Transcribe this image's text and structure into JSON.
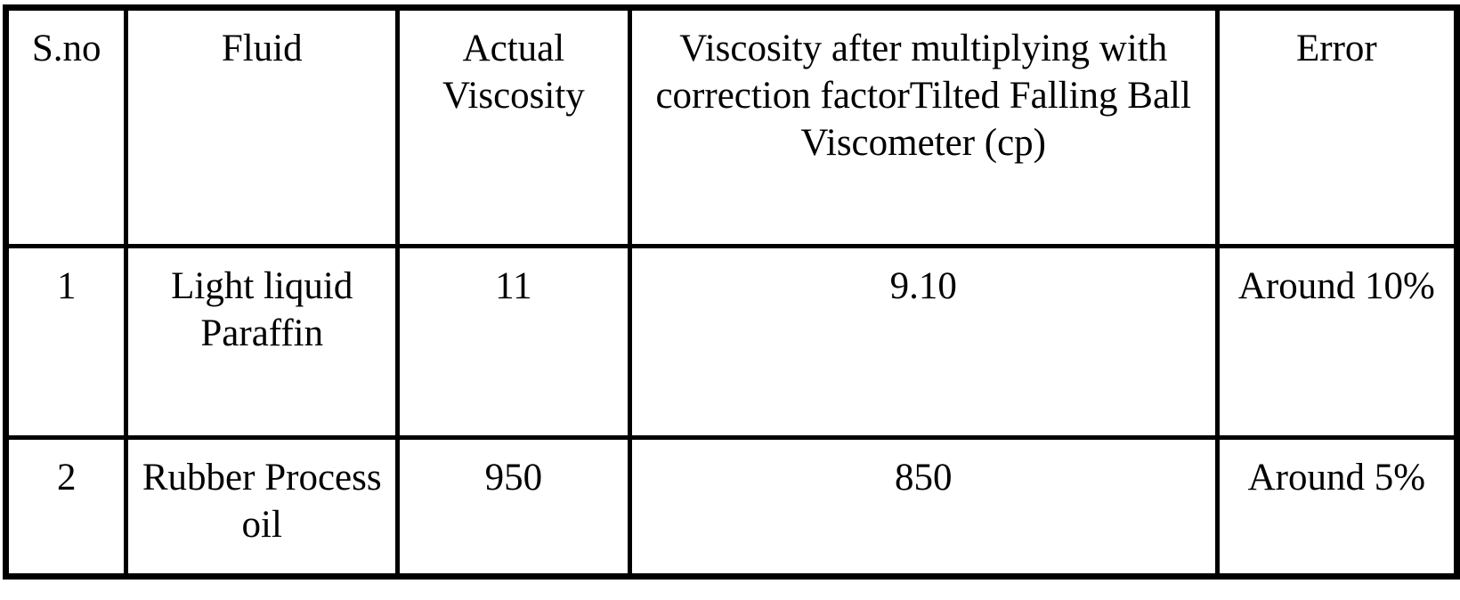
{
  "table": {
    "header": {
      "sno": "S.no",
      "fluid": "Fluid",
      "actual_viscosity_lines": [
        "Actual",
        "Viscosity"
      ],
      "corrected_viscosity_lines": [
        "Viscosity after multiplying with",
        "correction factorTilted Falling Ball",
        "Viscometer (cp)"
      ],
      "error": "Error"
    },
    "rows": [
      {
        "sno": "1",
        "fluid_lines": [
          "Light liquid",
          "Paraffin"
        ],
        "actual_viscosity": "11",
        "corrected_viscosity": "9.10",
        "error": "Around 10%"
      },
      {
        "sno": "2",
        "fluid_lines": [
          "Rubber Process",
          "oil"
        ],
        "actual_viscosity": "950",
        "corrected_viscosity": "850",
        "error": "Around 5%"
      }
    ]
  },
  "colors": {
    "border": "#000000",
    "background": "#ffffff",
    "text": "#000000"
  },
  "chart_data": {
    "type": "table",
    "columns": [
      "S.no",
      "Fluid",
      "Actual Viscosity",
      "Viscosity after multiplying with correction factorTilted Falling Ball Viscometer (cp)",
      "Error"
    ],
    "rows": [
      [
        "1",
        "Light liquid Paraffin",
        "11",
        "9.10",
        "Around 10%"
      ],
      [
        "2",
        "Rubber Process oil",
        "950",
        "850",
        "Around 5%"
      ]
    ]
  }
}
